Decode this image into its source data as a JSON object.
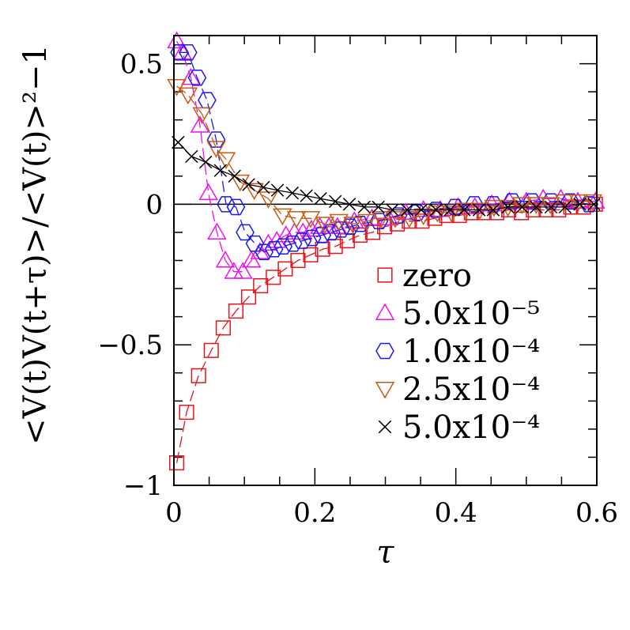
{
  "chart_data": {
    "type": "scatter",
    "title": "",
    "xlabel": "τ",
    "ylabel": "<V(t)V(t+τ)>/<V(t)>²−1",
    "xlim": [
      0,
      0.6
    ],
    "ylim": [
      -1,
      0.6
    ],
    "grid": false,
    "legend_position": "bottom-right",
    "reference_line_y": 0,
    "x_ticks": [
      {
        "value": 0,
        "label": "0"
      },
      {
        "value": 0.2,
        "label": "0.2"
      },
      {
        "value": 0.4,
        "label": "0.4"
      },
      {
        "value": 0.6,
        "label": "0.6"
      }
    ],
    "y_ticks": [
      {
        "value": -1,
        "label": "−1"
      },
      {
        "value": -0.5,
        "label": "−0.5"
      },
      {
        "value": 0,
        "label": "0"
      },
      {
        "value": 0.5,
        "label": "0.5"
      }
    ],
    "series": [
      {
        "name": "zero",
        "marker": "square",
        "color": "#e8141c",
        "x": [
          0.004,
          0.018,
          0.035,
          0.053,
          0.07,
          0.088,
          0.106,
          0.123,
          0.141,
          0.158,
          0.176,
          0.194,
          0.211,
          0.229,
          0.246,
          0.264,
          0.282,
          0.299,
          0.317,
          0.334,
          0.352,
          0.37,
          0.387,
          0.405,
          0.422,
          0.44,
          0.458,
          0.475,
          0.493,
          0.51,
          0.528,
          0.546,
          0.563,
          0.581,
          0.598
        ],
        "values": [
          -0.92,
          -0.74,
          -0.61,
          -0.52,
          -0.44,
          -0.38,
          -0.33,
          -0.29,
          -0.26,
          -0.23,
          -0.2,
          -0.18,
          -0.16,
          -0.15,
          -0.13,
          -0.11,
          -0.1,
          -0.08,
          -0.07,
          -0.06,
          -0.06,
          -0.05,
          -0.04,
          -0.04,
          -0.03,
          -0.03,
          -0.03,
          -0.02,
          -0.03,
          -0.02,
          -0.02,
          -0.02,
          -0.01,
          -0.01,
          0.0
        ]
      },
      {
        "name": "5.0x10⁻⁵",
        "marker": "triangle-up",
        "color": "#ee10ee",
        "x": [
          0.004,
          0.012,
          0.024,
          0.037,
          0.049,
          0.061,
          0.073,
          0.085,
          0.098,
          0.11,
          0.122,
          0.134,
          0.146,
          0.159,
          0.171,
          0.183,
          0.195,
          0.207,
          0.22,
          0.232,
          0.256,
          0.281,
          0.305,
          0.329,
          0.354,
          0.378,
          0.403,
          0.427,
          0.451,
          0.476,
          0.5,
          0.524,
          0.549,
          0.573,
          0.598
        ],
        "values": [
          0.58,
          0.54,
          0.45,
          0.28,
          0.04,
          -0.1,
          -0.2,
          -0.24,
          -0.24,
          -0.2,
          -0.17,
          -0.14,
          -0.13,
          -0.11,
          -0.1,
          -0.1,
          -0.09,
          -0.08,
          -0.08,
          -0.08,
          -0.06,
          -0.05,
          -0.05,
          -0.03,
          -0.02,
          -0.02,
          -0.01,
          -0.01,
          0.0,
          0.01,
          0.01,
          0.02,
          0.02,
          0.01,
          0.01
        ]
      },
      {
        "name": "1.0x10⁻⁴",
        "marker": "hexagon",
        "color": "#1a1af0",
        "x": [
          0.008,
          0.02,
          0.033,
          0.047,
          0.06,
          0.074,
          0.088,
          0.101,
          0.115,
          0.128,
          0.142,
          0.155,
          0.169,
          0.182,
          0.196,
          0.21,
          0.223,
          0.237,
          0.25,
          0.264,
          0.291,
          0.318,
          0.345,
          0.372,
          0.399,
          0.426,
          0.453,
          0.48,
          0.508,
          0.535,
          0.562,
          0.589
        ],
        "values": [
          0.54,
          0.54,
          0.45,
          0.37,
          0.23,
          0.0,
          -0.01,
          -0.1,
          -0.14,
          -0.17,
          -0.16,
          -0.15,
          -0.14,
          -0.13,
          -0.12,
          -0.11,
          -0.1,
          -0.09,
          -0.08,
          -0.07,
          -0.06,
          -0.04,
          -0.03,
          -0.02,
          -0.01,
          0.0,
          0.0,
          0.01,
          0.01,
          0.01,
          0.01,
          0.0
        ]
      },
      {
        "name": "2.5x10⁻⁴",
        "marker": "triangle-down",
        "color": "#c85a14",
        "x": [
          0.004,
          0.02,
          0.04,
          0.06,
          0.074,
          0.094,
          0.114,
          0.134,
          0.154,
          0.174,
          0.194,
          0.214,
          0.234,
          0.254,
          0.274,
          0.294,
          0.314,
          0.334,
          0.354,
          0.374,
          0.394,
          0.414,
          0.434,
          0.454,
          0.474,
          0.494,
          0.514,
          0.534,
          0.554,
          0.574,
          0.594
        ],
        "values": [
          0.42,
          0.39,
          0.32,
          0.2,
          0.16,
          0.08,
          0.05,
          0.02,
          -0.04,
          -0.05,
          -0.05,
          -0.07,
          -0.06,
          -0.07,
          -0.06,
          -0.05,
          -0.05,
          -0.05,
          -0.04,
          -0.03,
          -0.03,
          -0.02,
          -0.02,
          -0.01,
          -0.01,
          0.0,
          0.0,
          0.0,
          0.01,
          0.01,
          0.01
        ]
      },
      {
        "name": "5.0x10⁻⁴",
        "marker": "cross",
        "color": "#000000",
        "x": [
          0.006,
          0.025,
          0.045,
          0.066,
          0.086,
          0.106,
          0.127,
          0.147,
          0.168,
          0.188,
          0.208,
          0.229,
          0.249,
          0.27,
          0.29,
          0.31,
          0.331,
          0.351,
          0.372,
          0.392,
          0.412,
          0.433,
          0.453,
          0.474,
          0.494,
          0.514,
          0.535,
          0.555,
          0.576,
          0.596
        ],
        "values": [
          0.22,
          0.17,
          0.15,
          0.12,
          0.1,
          0.07,
          0.06,
          0.05,
          0.04,
          0.03,
          0.02,
          0.01,
          0.0,
          -0.01,
          -0.01,
          -0.02,
          -0.02,
          -0.02,
          -0.02,
          -0.02,
          -0.02,
          -0.02,
          -0.02,
          -0.01,
          -0.01,
          -0.01,
          -0.01,
          -0.01,
          0.0,
          0.0
        ]
      }
    ]
  }
}
